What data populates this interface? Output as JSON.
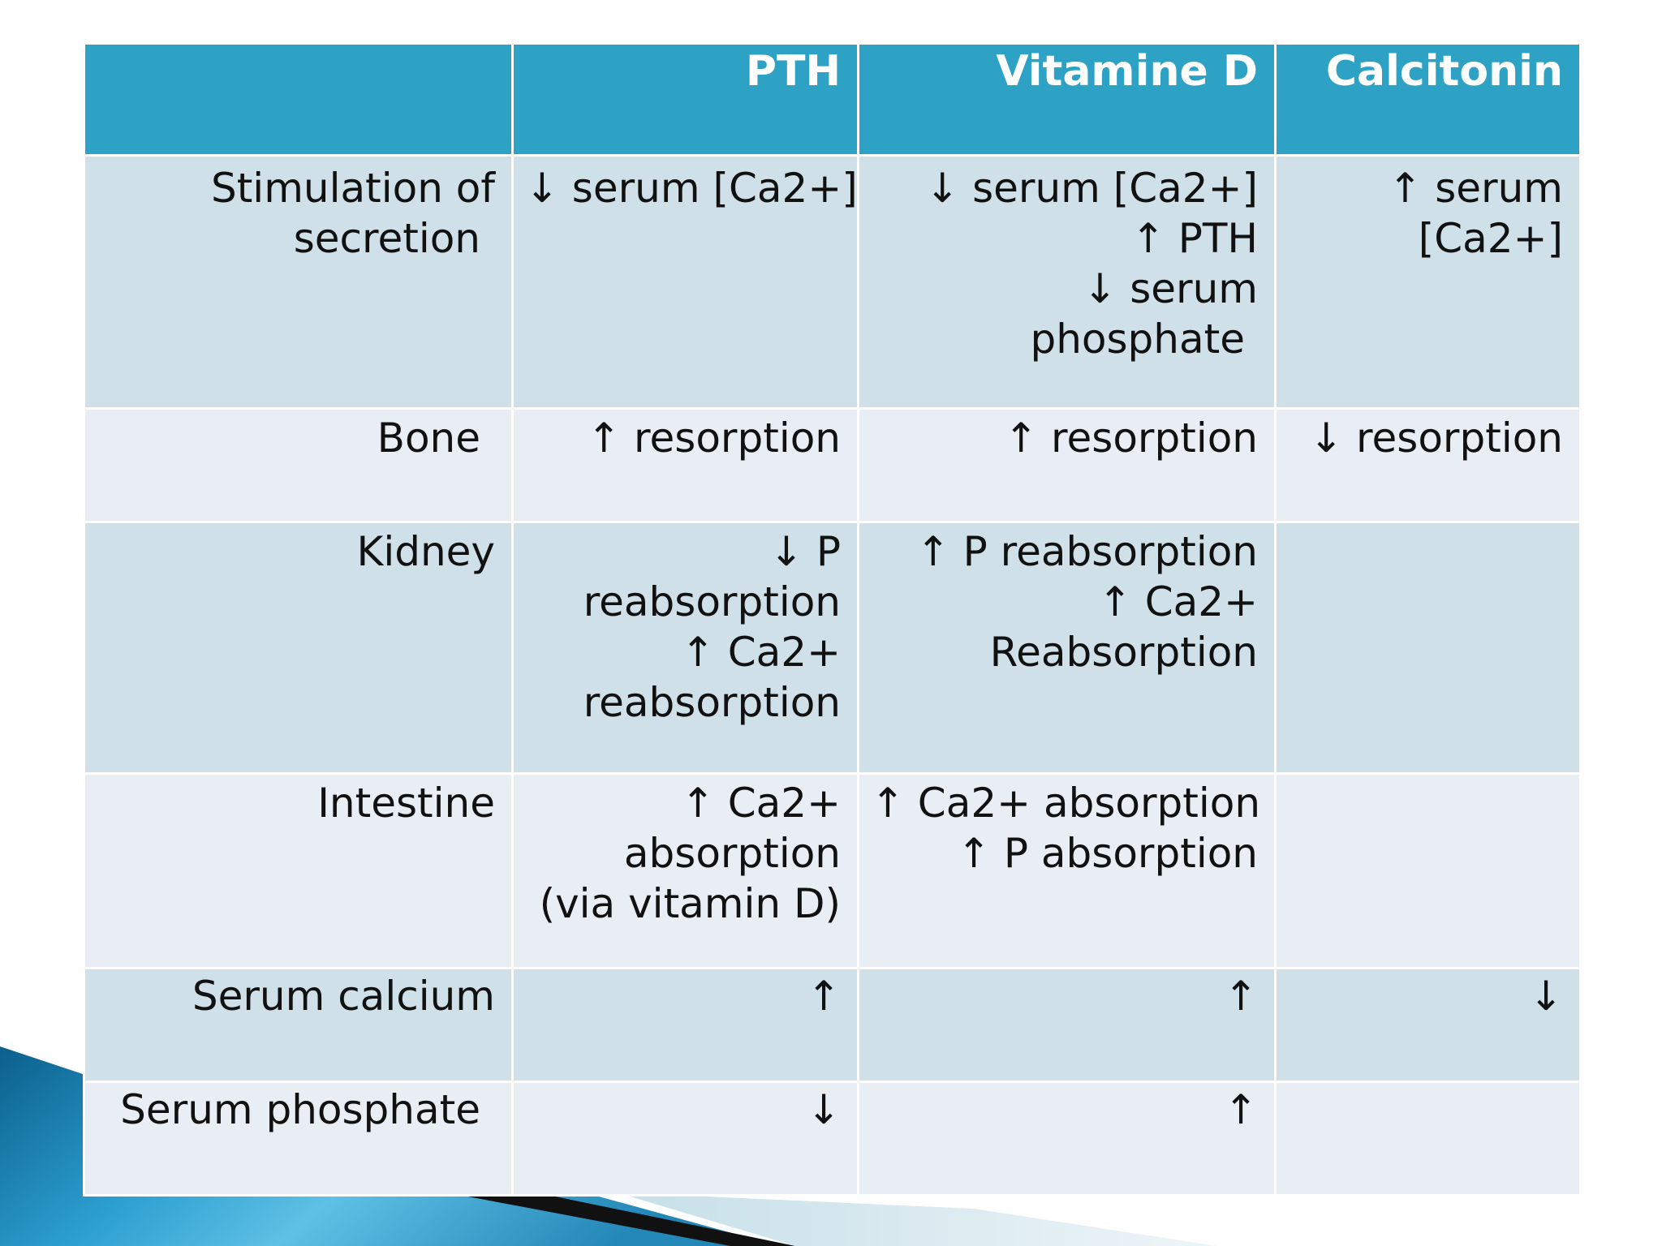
{
  "table": {
    "columns": [
      "",
      "PTH",
      "Vitamine D",
      "Calcitonin"
    ],
    "rows": [
      {
        "label": [
          "Stimulation of",
          "secretion"
        ],
        "cells": [
          [
            "↓ serum [Ca2+]"
          ],
          [
            "↓ serum [Ca2+]",
            "↑ PTH",
            "↓ serum",
            "phosphate"
          ],
          [
            "↑ serum",
            "[Ca2+]"
          ]
        ]
      },
      {
        "label": [
          "Bone"
        ],
        "cells": [
          [
            "↑ resorption"
          ],
          [
            "↑ resorption"
          ],
          [
            "↓ resorption"
          ]
        ]
      },
      {
        "label": [
          "Kidney"
        ],
        "cells": [
          [
            "↓ P",
            "reabsorption",
            "↑ Ca2+",
            "reabsorption"
          ],
          [
            "↑ P reabsorption",
            "↑ Ca2+",
            "Reabsorption"
          ],
          []
        ]
      },
      {
        "label": [
          "Intestine"
        ],
        "cells": [
          [
            "↑ Ca2+",
            "absorption",
            "(via vitamin D)"
          ],
          [
            "↑ Ca2+ absorption",
            "↑ P absorption"
          ],
          []
        ]
      },
      {
        "label": [
          "Serum calcium"
        ],
        "cells": [
          [
            "↑"
          ],
          [
            "↑"
          ],
          [
            "↓"
          ]
        ]
      },
      {
        "label": [
          "Serum phosphate"
        ],
        "cells": [
          [
            "↓"
          ],
          [
            "↑"
          ],
          []
        ]
      }
    ]
  },
  "colors": {
    "header": "#2ea2c4",
    "band_dark": "#cfe0e8",
    "band_light": "#e8eef4",
    "decoration": "#1a7fb0"
  }
}
